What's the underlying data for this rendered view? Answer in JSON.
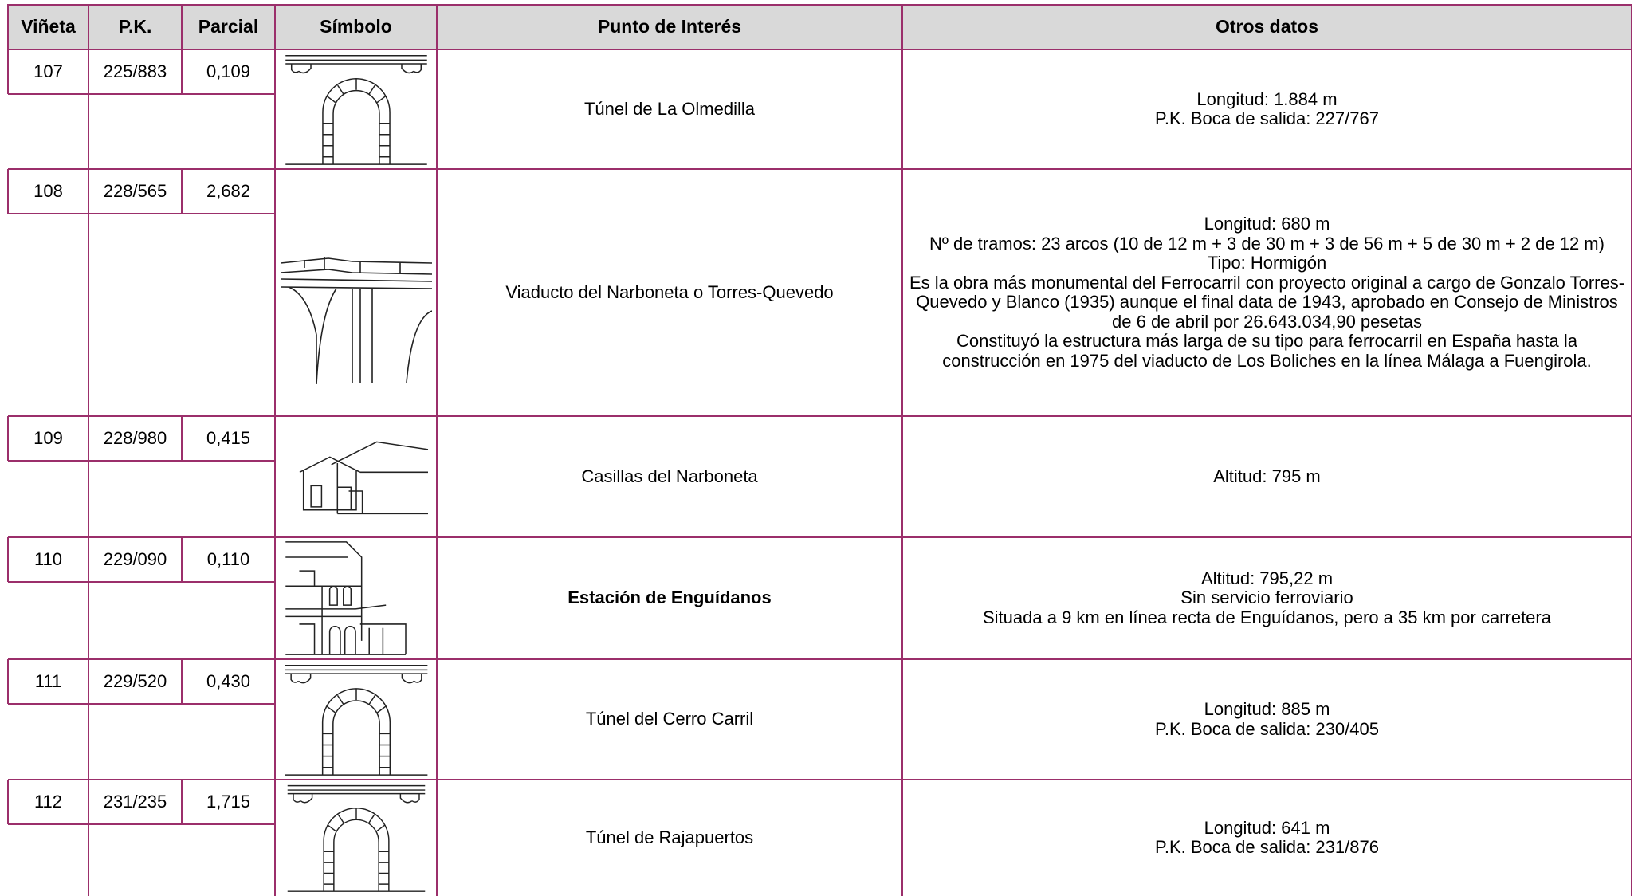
{
  "table": {
    "header": [
      "Viñeta",
      "P.K.",
      "Parcial",
      "Símbolo",
      "Punto de Interés",
      "Otros datos"
    ],
    "rows": [
      {
        "vineta": "107",
        "pk": "225/883",
        "parcial": "0,109",
        "punto": "Túnel de La Olmedilla",
        "otros": [
          "Longitud: 1.884 m",
          "P.K. Boca de salida: 227/767"
        ]
      },
      {
        "vineta": "108",
        "pk": "228/565",
        "parcial": "2,682",
        "punto": "Viaducto del Narboneta o Torres-Quevedo",
        "otros": [
          "Longitud: 680 m",
          "Nº de tramos: 23 arcos (10 de 12 m + 3 de 30 m + 3 de 56 m + 5 de 30 m + 2 de 12 m)",
          "Tipo: Hormigón",
          "Es la obra más monumental del Ferrocarril con proyecto original a cargo de Gonzalo Torres-Quevedo y Blanco (1935) aunque el final data de 1943, aprobado en Consejo de Ministros de 6 de abril por 26.643.034,90 pesetas",
          "Constituyó la estructura más larga de su tipo para ferrocarril en España hasta la construcción en 1975 del viaducto de Los Boliches en la línea Málaga a Fuengirola."
        ]
      },
      {
        "vineta": "109",
        "pk": "228/980",
        "parcial": "0,415",
        "punto": "Casillas del Narboneta",
        "otros": [
          "Altitud: 795 m"
        ]
      },
      {
        "vineta": "110",
        "pk": "229/090",
        "parcial": "0,110",
        "punto": "Estación de Enguídanos",
        "punto_bold": true,
        "otros": [
          "Altitud: 795,22 m",
          "Sin servicio ferroviario",
          "Situada a 9 km en línea recta de Enguídanos, pero a 35 km por carretera"
        ]
      },
      {
        "vineta": "111",
        "pk": "229/520",
        "parcial": "0,430",
        "punto": "Túnel del Cerro Carril",
        "otros": [
          "Longitud: 885 m",
          "P.K. Boca de salida: 230/405"
        ]
      },
      {
        "vineta": "112",
        "pk": "231/235",
        "parcial": "1,715",
        "punto": "Túnel de Rajapuertos",
        "otros": [
          "Longitud: 641 m",
          "P.K. Boca de salida: 231/876"
        ]
      }
    ]
  }
}
